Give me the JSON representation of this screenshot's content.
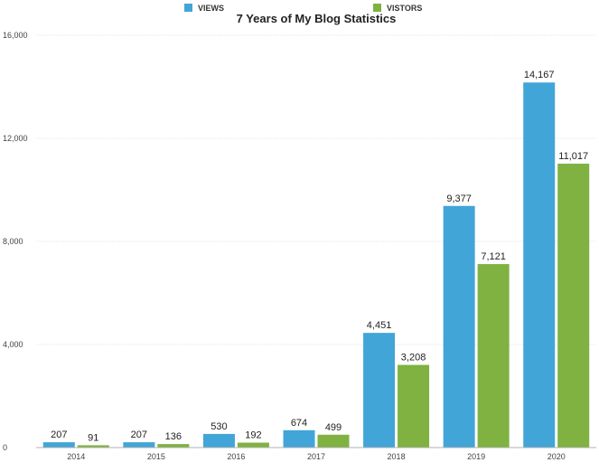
{
  "chart_data": {
    "type": "bar",
    "title": "7 Years of My Blog Statistics",
    "categories": [
      "2014",
      "2015",
      "2016",
      "2017",
      "2018",
      "2019",
      "2020"
    ],
    "series": [
      {
        "name": "VIEWS",
        "color": "#42a5d8",
        "values": [
          207,
          207,
          530,
          674,
          4451,
          9377,
          14167
        ],
        "labels": [
          "207",
          "207",
          "530",
          "674",
          "4,451",
          "9,377",
          "14,167"
        ]
      },
      {
        "name": "VISTORS",
        "color": "#7fb241",
        "values": [
          91,
          136,
          192,
          499,
          3208,
          7121,
          11017
        ],
        "labels": [
          "91",
          "136",
          "192",
          "499",
          "3,208",
          "7,121",
          "11,017"
        ]
      }
    ],
    "ylim": [
      0,
      16000
    ],
    "yticks": [
      0,
      4000,
      8000,
      12000,
      16000
    ],
    "ytick_labels": [
      "0",
      "4,000",
      "8,000",
      "12,000",
      "16,000"
    ],
    "grid": true,
    "legend_position": "top-center"
  }
}
